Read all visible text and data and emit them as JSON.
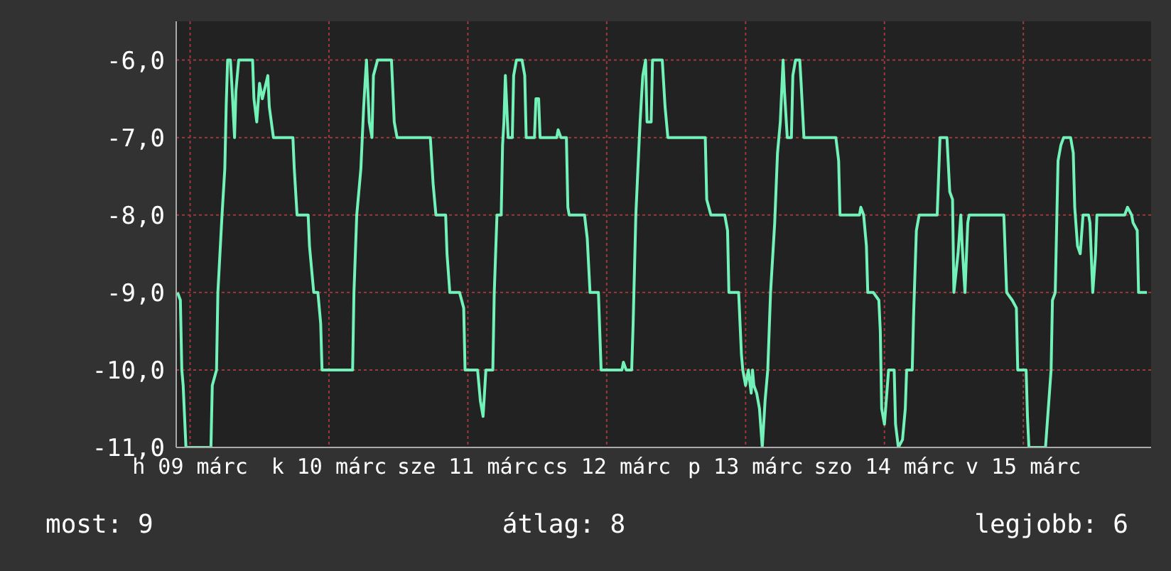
{
  "chart_data": {
    "type": "line",
    "xlim": [
      "--03-08T21:36",
      "--03-15T22:05"
    ],
    "xticks": [
      {
        "value": "--03-09",
        "label": "h 09 márc"
      },
      {
        "value": "--03-10",
        "label": "k 10 márc"
      },
      {
        "value": "--03-11",
        "label": "sze 11 márc"
      },
      {
        "value": "--03-12",
        "label": "cs 12 márc"
      },
      {
        "value": "--03-13",
        "label": "p 13 márc"
      },
      {
        "value": "--03-14",
        "label": "szo 14 márc"
      },
      {
        "value": "--03-15",
        "label": "v 15 márc"
      }
    ],
    "ylim": [
      -11,
      -5.5
    ],
    "yticks": [
      {
        "value": -11,
        "label": "-11,0"
      },
      {
        "value": -10,
        "label": "-10,0"
      },
      {
        "value": -9,
        "label": "-9,0"
      },
      {
        "value": -8,
        "label": "-8,0"
      },
      {
        "value": -7,
        "label": "-7,0"
      },
      {
        "value": -6,
        "label": "-6,0"
      }
    ],
    "grid": true,
    "marker": "none",
    "line_style": "solid",
    "annotations": [
      "most: 9",
      "átlag: 8",
      "legjobb: 6"
    ],
    "series": [
      {
        "color": "#72f2b8",
        "x": [
          "--03-08T21:50",
          "--03-08T22:19",
          "--03-08T22:34",
          "--03-08T22:48",
          "--03-08T23:17",
          "--03-09T03:36",
          "--03-09T03:50",
          "--03-09T04:34",
          "--03-09T04:48",
          "--03-09T05:31",
          "--03-09T06:00",
          "--03-09T06:14",
          "--03-09T06:29",
          "--03-09T06:58",
          "--03-09T07:12",
          "--03-09T07:41",
          "--03-09T07:55",
          "--03-09T08:24",
          "--03-09T10:48",
          "--03-09T11:02",
          "--03-09T11:31",
          "--03-09T12:00",
          "--03-09T12:29",
          "--03-09T13:26",
          "--03-09T13:41",
          "--03-09T14:24",
          "--03-09T17:46",
          "--03-09T18:00",
          "--03-09T18:29",
          "--03-09T20:24",
          "--03-09T20:38",
          "--03-09T21:22",
          "--03-09T22:05",
          "--03-09T22:34",
          "--03-09T22:48",
          "--03-10T04:05",
          "--03-10T04:19",
          "--03-10T04:48",
          "--03-10T05:31",
          "--03-10T06:00",
          "--03-10T06:14",
          "--03-10T06:29",
          "--03-10T06:58",
          "--03-10T07:26",
          "--03-10T07:41",
          "--03-10T08:24",
          "--03-10T10:48",
          "--03-10T11:17",
          "--03-10T11:46",
          "--03-10T17:31",
          "--03-10T18:00",
          "--03-10T18:29",
          "--03-10T20:10",
          "--03-10T20:24",
          "--03-10T20:53",
          "--03-10T22:34",
          "--03-10T23:17",
          "--03-10T23:31",
          "--03-11T01:41",
          "--03-11T02:10",
          "--03-11T02:38",
          "--03-11T03:07",
          "--03-11T04:19",
          "--03-11T04:34",
          "--03-11T05:02",
          "--03-11T05:46",
          "--03-11T06:00",
          "--03-11T06:14",
          "--03-11T06:29",
          "--03-11T06:58",
          "--03-11T07:41",
          "--03-11T07:55",
          "--03-11T08:24",
          "--03-11T09:22",
          "--03-11T09:50",
          "--03-11T10:05",
          "--03-11T11:31",
          "--03-11T11:46",
          "--03-11T12:14",
          "--03-11T12:29",
          "--03-11T15:22",
          "--03-11T15:36",
          "--03-11T16:05",
          "--03-11T17:02",
          "--03-11T17:17",
          "--03-11T17:31",
          "--03-11T20:10",
          "--03-11T20:38",
          "--03-11T21:07",
          "--03-11T22:34",
          "--03-11T23:02",
          "--03-12T02:38",
          "--03-12T02:53",
          "--03-12T03:22",
          "--03-12T04:19",
          "--03-12T04:34",
          "--03-12T05:02",
          "--03-12T05:31",
          "--03-12T05:46",
          "--03-12T06:14",
          "--03-12T06:43",
          "--03-12T06:58",
          "--03-12T07:41",
          "--03-12T07:55",
          "--03-12T09:36",
          "--03-12T10:05",
          "--03-12T10:34",
          "--03-12T17:02",
          "--03-12T17:17",
          "--03-12T18:00",
          "--03-12T20:24",
          "--03-12T20:53",
          "--03-12T21:07",
          "--03-12T22:48",
          "--03-12T23:17",
          "--03-12T23:31",
          "--03-13T00:00",
          "--03-13T00:29",
          "--03-13T00:58",
          "--03-13T01:12",
          "--03-13T01:26",
          "--03-13T01:55",
          "--03-13T02:24",
          "--03-13T02:53",
          "--03-13T03:22",
          "--03-13T03:50",
          "--03-13T04:19",
          "--03-13T05:02",
          "--03-13T05:31",
          "--03-13T06:00",
          "--03-13T06:29",
          "--03-13T06:43",
          "--03-13T07:12",
          "--03-13T07:55",
          "--03-13T08:10",
          "--03-13T08:38",
          "--03-13T09:22",
          "--03-13T09:36",
          "--03-13T10:05",
          "--03-13T15:36",
          "--03-13T16:05",
          "--03-13T16:19",
          "--03-13T19:41",
          "--03-13T19:55",
          "--03-13T20:24",
          "--03-13T20:53",
          "--03-13T21:07",
          "--03-13T22:05",
          "--03-13T23:02",
          "--03-13T23:17",
          "--03-13T23:31",
          "--03-14T00:00",
          "--03-14T00:43",
          "--03-14T01:41",
          "--03-14T01:55",
          "--03-14T02:24",
          "--03-14T03:07",
          "--03-14T03:36",
          "--03-14T03:50",
          "--03-14T04:48",
          "--03-14T05:02",
          "--03-14T05:31",
          "--03-14T06:00",
          "--03-14T09:07",
          "--03-14T09:36",
          "--03-14T10:48",
          "--03-14T11:17",
          "--03-14T11:46",
          "--03-14T12:00",
          "--03-14T12:43",
          "--03-14T13:12",
          "--03-14T13:26",
          "--03-14T13:55",
          "--03-14T14:24",
          "--03-14T14:38",
          "--03-14T20:38",
          "--03-14T21:07",
          "--03-14T22:05",
          "--03-14T22:48",
          "--03-14T23:02",
          "--03-15T00:29",
          "--03-15T00:43",
          "--03-15T00:58",
          "--03-15T03:50",
          "--03-15T04:19",
          "--03-15T04:48",
          "--03-15T05:02",
          "--03-15T05:31",
          "--03-15T06:00",
          "--03-15T06:29",
          "--03-15T06:58",
          "--03-15T08:10",
          "--03-15T08:38",
          "--03-15T08:53",
          "--03-15T09:22",
          "--03-15T09:50",
          "--03-15T10:19",
          "--03-15T11:17",
          "--03-15T11:31",
          "--03-15T12:00",
          "--03-15T12:29",
          "--03-15T12:43",
          "--03-15T17:31",
          "--03-15T18:00",
          "--03-15T18:43",
          "--03-15T18:58",
          "--03-15T19:41",
          "--03-15T19:55",
          "--03-15T21:22"
        ],
        "values": [
          -9,
          -9.1,
          -10,
          -10.2,
          -11,
          -11,
          -10.2,
          -10,
          -9,
          -8,
          -7.4,
          -6.6,
          -6,
          -6,
          -6.3,
          -7,
          -6.4,
          -6,
          -6,
          -6.5,
          -6.8,
          -6.3,
          -6.5,
          -6.2,
          -6.6,
          -7,
          -7,
          -7.4,
          -8,
          -8,
          -8.4,
          -9,
          -9,
          -9.4,
          -10,
          -10,
          -9,
          -8,
          -7.4,
          -6.6,
          -6.3,
          -6,
          -6.8,
          -7,
          -6.2,
          -6,
          -6,
          -6.8,
          -7,
          -7,
          -7.6,
          -8,
          -8,
          -8.5,
          -9,
          -9,
          -9.2,
          -10,
          -10,
          -10.4,
          -10.6,
          -10,
          -10,
          -9,
          -8,
          -8,
          -7.1,
          -6.8,
          -6.2,
          -7,
          -7,
          -6.2,
          -6,
          -6,
          -6.2,
          -7,
          -7,
          -6.5,
          -6.5,
          -7,
          -7,
          -6.9,
          -7,
          -7,
          -7.9,
          -8,
          -8,
          -8.3,
          -9,
          -9,
          -10,
          -10,
          -9.9,
          -10,
          -10,
          -9.4,
          -8,
          -7.2,
          -6.8,
          -6.2,
          -6,
          -6.8,
          -6.8,
          -6,
          -6,
          -6.6,
          -7,
          -7,
          -7.8,
          -8,
          -8,
          -8.2,
          -9,
          -9,
          -9.8,
          -10,
          -10.2,
          -10,
          -10.3,
          -10,
          -10.2,
          -10.3,
          -10.5,
          -11,
          -10.4,
          -10,
          -9,
          -8.1,
          -7.2,
          -6.8,
          -6,
          -6.4,
          -7,
          -7,
          -6.2,
          -6,
          -6,
          -6.3,
          -7,
          -7,
          -7.3,
          -8,
          -8,
          -7.9,
          -8,
          -8.4,
          -9,
          -9,
          -9.1,
          -9.5,
          -10.5,
          -10.7,
          -10,
          -10,
          -10.7,
          -11,
          -10.9,
          -10.5,
          -10,
          -10,
          -9.3,
          -8.2,
          -8,
          -8,
          -7,
          -7,
          -7.7,
          -7.8,
          -9,
          -8.5,
          -8,
          -8.4,
          -9,
          -8.1,
          -8,
          -8,
          -9,
          -9.1,
          -9.2,
          -10,
          -10,
          -10.6,
          -11,
          -11,
          -10.5,
          -10,
          -9.1,
          -9,
          -7.3,
          -7.1,
          -7,
          -7,
          -7.2,
          -7.9,
          -8.4,
          -8.5,
          -8,
          -8,
          -8.1,
          -9,
          -8.5,
          -8,
          -8,
          -7.9,
          -8,
          -8.1,
          -8.2,
          -9,
          -9
        ]
      }
    ]
  }
}
